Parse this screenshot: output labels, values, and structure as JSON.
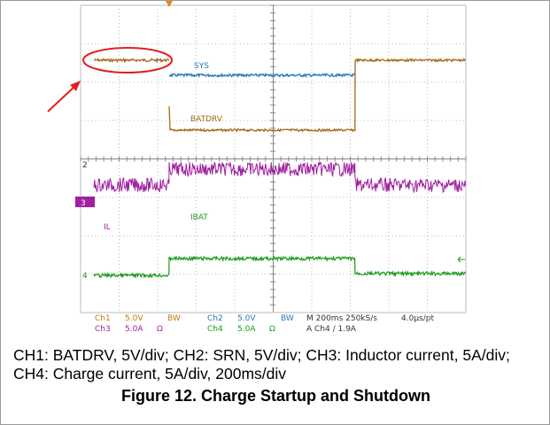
{
  "scope": {
    "traces": {
      "sys": "SYS",
      "batdrv": "BATDRV",
      "ibat": "IBAT",
      "il": "IL"
    },
    "markers": {
      "ch2": "2",
      "ch3": "3",
      "ch4": "4"
    },
    "status": {
      "row1": [
        "Ch1",
        "5.0V",
        "BW",
        "Ch2",
        "5.0V",
        "BW",
        "M 200ms 250kS/s",
        "4.0µs/pt"
      ],
      "row2": [
        "Ch3",
        "5.0A",
        "Ω",
        "Ch4",
        "5.0A",
        "Ω",
        "A  Ch4  ∕  1.9A"
      ]
    }
  },
  "caption": "CH1: BATDRV, 5V/div; CH2: SRN, 5V/div; CH3: Inductor current, 5A/div; CH4: Charge current, 5A/div, 200ms/div",
  "figure_title": "Figure 12. Charge Startup and Shutdown"
}
